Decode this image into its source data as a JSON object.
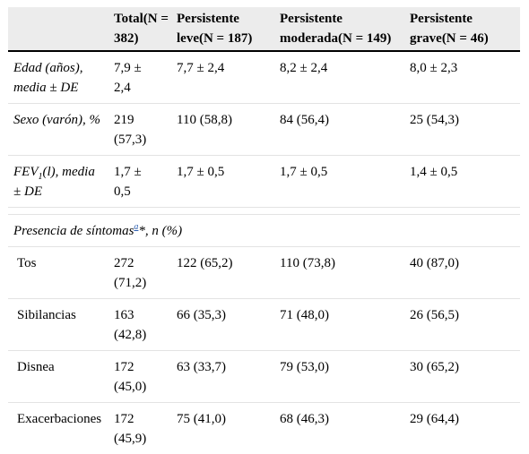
{
  "header": {
    "col0": "",
    "col1": [
      "Total(N =",
      "382)"
    ],
    "col2": [
      "Persistente",
      "leve(N = 187)"
    ],
    "col3": [
      "Persistente",
      "moderada(N = 149)"
    ],
    "col4": [
      "Persistente",
      "grave(N = 46)"
    ]
  },
  "rows_top": [
    {
      "label": [
        "Edad (años),",
        "media ± DE"
      ],
      "total": [
        "7,9 ±",
        "2,4"
      ],
      "leve": "7,7 ± 2,4",
      "moderada": "8,2 ± 2,4",
      "grave": "8,0 ± 2,3"
    },
    {
      "label": [
        "Sexo (varón), %"
      ],
      "total": [
        "219",
        "(57,3)"
      ],
      "leve": "110 (58,8)",
      "moderada": "84 (56,4)",
      "grave": "25 (54,3)"
    },
    {
      "label_fev": "FEV",
      "label_sub": "1",
      "label_rest": "(l), media",
      "label_line2": "± DE",
      "total": [
        "1,7 ±",
        "0,5"
      ],
      "leve": "1,7 ± 0,5",
      "moderada": "1,7 ± 0,5",
      "grave": "1,4 ± 0,5"
    }
  ],
  "section": {
    "prefix": "Presencia de síntomas",
    "footnote": "a",
    "suffix": "*, n (%)"
  },
  "symptoms": [
    {
      "label": "Tos",
      "total": [
        "272",
        "(71,2)"
      ],
      "leve": "122 (65,2)",
      "moderada": "110 (73,8)",
      "grave": "40 (87,0)"
    },
    {
      "label": "Sibilancias",
      "total": [
        "163",
        "(42,8)"
      ],
      "leve": "66 (35,3)",
      "moderada": "71 (48,0)",
      "grave": "26 (56,5)"
    },
    {
      "label": "Disnea",
      "total": [
        "172",
        "(45,0)"
      ],
      "leve": "63 (33,7)",
      "moderada": "79 (53,0)",
      "grave": "30 (65,2)"
    },
    {
      "label": "Exacerbaciones",
      "total": [
        "172",
        "(45,9)"
      ],
      "leve": "75 (41,0)",
      "moderada": "68 (46,3)",
      "grave": "29 (64,4)"
    }
  ]
}
